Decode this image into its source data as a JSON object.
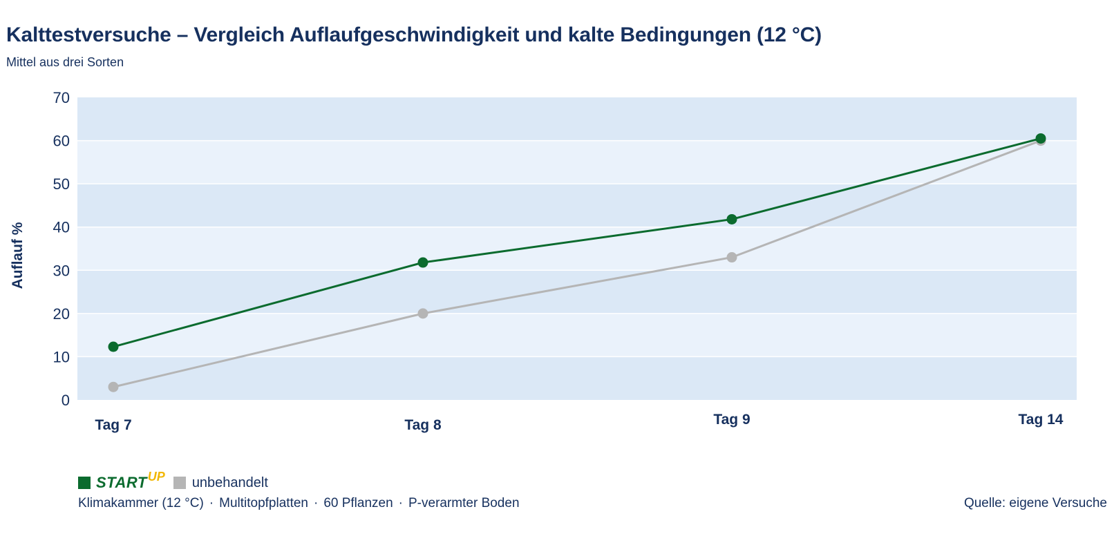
{
  "header": {
    "title": "Kalttestversuche – Vergleich Auflaufgeschwindigkeit und kalte Bedingungen (12 °C)",
    "subtitle": "Mittel aus drei Sorten"
  },
  "chart_data": {
    "type": "line",
    "title": "Kalttestversuche – Vergleich Auflaufgeschwindigkeit und kalte Bedingungen (12 °C)",
    "subtitle": "Mittel aus drei Sorten",
    "xlabel": "",
    "ylabel": "Auflauf %",
    "categories": [
      "Tag 7",
      "Tag 8",
      "Tag 9",
      "Tag 14"
    ],
    "ylim": [
      0,
      70
    ],
    "yticks": [
      0,
      10,
      20,
      30,
      40,
      50,
      60,
      70
    ],
    "grid": true,
    "legend_position": "bottom-left",
    "series": [
      {
        "name": "STARTUP",
        "color": "#0b6b2e",
        "values": [
          12.3,
          31.8,
          41.8,
          60.5
        ]
      },
      {
        "name": "unbehandelt",
        "color": "#b5b5b5",
        "values": [
          3.0,
          20.0,
          33.0,
          60.0
        ]
      }
    ]
  },
  "legend": {
    "brand_main": "START",
    "brand_sup": "UP",
    "untreated_label": "unbehandelt",
    "brand_color": "#0b6b2e",
    "brand_accent": "#f2b705",
    "untreated_color": "#b5b5b5"
  },
  "footer": {
    "notes": [
      "Klimakammer (12 °C)",
      "Multitopfplatten",
      "60 Pflanzen",
      "P-verarmter Boden"
    ],
    "separator": "·",
    "source": "Quelle: eigene Versuche"
  },
  "colors": {
    "band_dark": "#dbe8f6",
    "band_light": "#eaf2fb",
    "text": "#16305e"
  }
}
